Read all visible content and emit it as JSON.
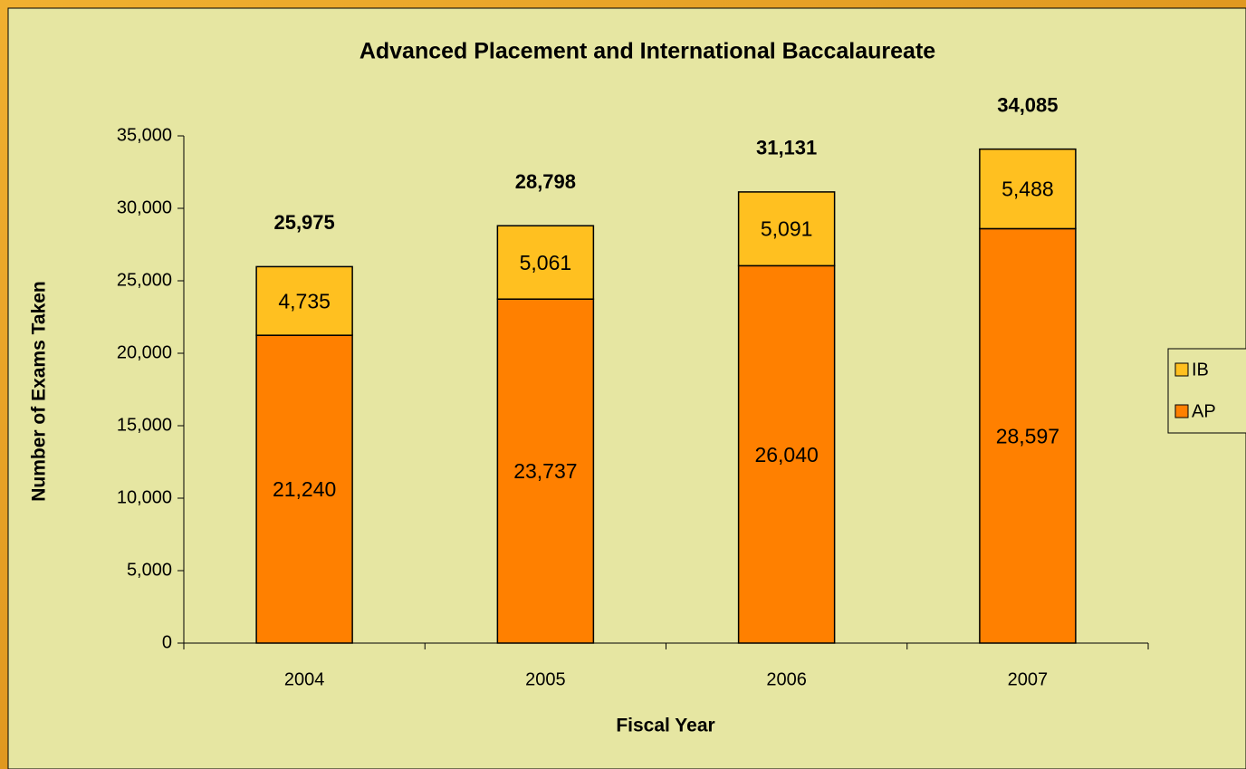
{
  "chart_data": {
    "type": "stacked_bar",
    "title": "Advanced Placement and International Baccalaureate",
    "x_label": "Fiscal Year",
    "y_label": "Number of Exams Taken",
    "categories": [
      "2004",
      "2005",
      "2006",
      "2007"
    ],
    "series": [
      {
        "name": "AP",
        "color": "#ff8000",
        "values": [
          21240,
          23737,
          26040,
          28597
        ],
        "value_labels": [
          "21,240",
          "23,737",
          "26,040",
          "28,597"
        ]
      },
      {
        "name": "IB",
        "color": "#ffc020",
        "values": [
          4735,
          5061,
          5091,
          5488
        ],
        "value_labels": [
          "4,735",
          "5,061",
          "5,091",
          "5,488"
        ]
      }
    ],
    "totals": [
      25975,
      28798,
      31131,
      34085
    ],
    "total_labels": [
      "25,975",
      "28,798",
      "31,131",
      "34,085"
    ],
    "ylim": [
      0,
      35000
    ],
    "yticks": [
      0,
      {
        "value": 5000,
        "label": "5,000"
      },
      {
        "value": 10000,
        "label": "10,000"
      },
      {
        "value": 15000,
        "label": "15,000"
      },
      {
        "value": 20000,
        "label": "20,000"
      },
      {
        "value": 25000,
        "label": "25,000"
      },
      {
        "value": 30000,
        "label": "30,000"
      },
      {
        "value": 35000,
        "label": "35,000"
      }
    ],
    "legend": "right"
  }
}
